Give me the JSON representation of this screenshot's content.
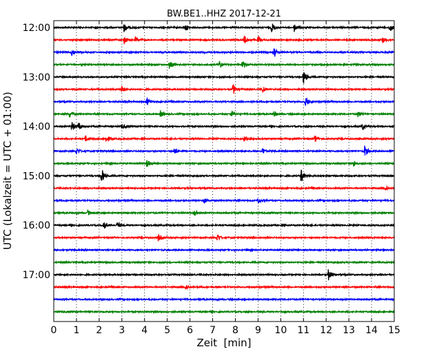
{
  "chart_data": {
    "type": "line",
    "title": "BW.BE1..HHZ 2017-12-21",
    "xlabel": "Zeit  [min]",
    "ylabel": "UTC (Lokalzeit = UTC + 01:00)",
    "xlim": [
      0,
      15
    ],
    "x_ticks": [
      0,
      1,
      2,
      3,
      4,
      5,
      6,
      7,
      8,
      9,
      10,
      11,
      12,
      13,
      14,
      15
    ],
    "x_grid": "dotted vertical",
    "y_ticks": [
      "12:00",
      "13:00",
      "14:00",
      "15:00",
      "16:00",
      "17:00"
    ],
    "trace_interval_min": 15,
    "color_cycle": [
      "#000000",
      "#ff0000",
      "#0000ff",
      "#008000"
    ],
    "traces": [
      {
        "start": "12:00",
        "events": [
          [
            3.1,
            7
          ],
          [
            5.8,
            5
          ],
          [
            9.6,
            8
          ],
          [
            10.6,
            7
          ],
          [
            14.8,
            8
          ]
        ]
      },
      {
        "start": "12:15",
        "events": [
          [
            3.1,
            6
          ],
          [
            3.6,
            5
          ],
          [
            8.4,
            6
          ],
          [
            9.0,
            5
          ],
          [
            14.5,
            5
          ]
        ]
      },
      {
        "start": "12:30",
        "events": [
          [
            0.8,
            6
          ],
          [
            9.7,
            8
          ]
        ]
      },
      {
        "start": "12:45",
        "events": [
          [
            5.1,
            8
          ],
          [
            7.3,
            6
          ],
          [
            8.3,
            6
          ]
        ]
      },
      {
        "start": "13:00",
        "events": [
          [
            11.0,
            11
          ]
        ]
      },
      {
        "start": "13:15",
        "events": [
          [
            3.0,
            5
          ],
          [
            7.9,
            8
          ],
          [
            9.2,
            5
          ]
        ]
      },
      {
        "start": "13:30",
        "events": [
          [
            4.1,
            6
          ],
          [
            11.1,
            8
          ]
        ]
      },
      {
        "start": "13:45",
        "events": [
          [
            0.7,
            5
          ],
          [
            4.7,
            5
          ],
          [
            7.8,
            7
          ],
          [
            9.7,
            5
          ],
          [
            13.4,
            5
          ]
        ]
      },
      {
        "start": "14:00",
        "events": [
          [
            0.8,
            8
          ],
          [
            1.1,
            6
          ],
          [
            3.0,
            4
          ],
          [
            13.6,
            5
          ]
        ]
      },
      {
        "start": "14:15",
        "events": [
          [
            1.4,
            5
          ],
          [
            2.3,
            6
          ],
          [
            8.4,
            5
          ],
          [
            11.5,
            5
          ]
        ]
      },
      {
        "start": "14:30",
        "events": [
          [
            1.0,
            5
          ],
          [
            5.3,
            5
          ],
          [
            9.2,
            5
          ],
          [
            13.7,
            8
          ]
        ]
      },
      {
        "start": "14:45",
        "events": [
          [
            4.1,
            6
          ],
          [
            13.2,
            5
          ]
        ]
      },
      {
        "start": "15:00",
        "events": [
          [
            2.1,
            12
          ],
          [
            10.9,
            12
          ]
        ]
      },
      {
        "start": "15:15",
        "events": [
          [
            14.6,
            5
          ]
        ]
      },
      {
        "start": "15:30",
        "events": [
          [
            6.6,
            5
          ],
          [
            9.0,
            4
          ]
        ]
      },
      {
        "start": "15:45",
        "events": [
          [
            1.5,
            4
          ],
          [
            6.2,
            4
          ]
        ]
      },
      {
        "start": "16:00",
        "events": [
          [
            2.2,
            6
          ],
          [
            2.8,
            6
          ]
        ]
      },
      {
        "start": "16:15",
        "events": [
          [
            4.6,
            5
          ],
          [
            7.2,
            6
          ]
        ]
      },
      {
        "start": "16:30",
        "events": []
      },
      {
        "start": "16:45",
        "events": []
      },
      {
        "start": "17:00",
        "events": [
          [
            12.1,
            8
          ]
        ]
      },
      {
        "start": "17:15",
        "events": [
          [
            5.8,
            5
          ]
        ]
      },
      {
        "start": "17:30",
        "events": []
      },
      {
        "start": "17:45",
        "events": []
      }
    ]
  }
}
